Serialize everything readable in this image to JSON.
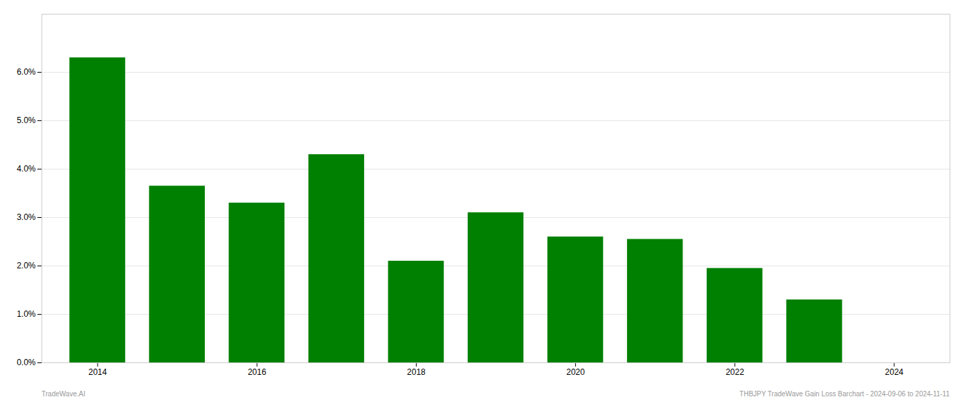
{
  "chart_data": {
    "type": "bar",
    "x": [
      2014,
      2015,
      2016,
      2017,
      2018,
      2019,
      2020,
      2021,
      2022,
      2023
    ],
    "values": [
      0.063,
      0.0365,
      0.033,
      0.043,
      0.021,
      0.031,
      0.026,
      0.0255,
      0.0195,
      0.013
    ],
    "color": "#008000",
    "xlim": [
      2013.3,
      2024.7
    ],
    "xticks": [
      2014,
      2016,
      2018,
      2020,
      2022,
      2024
    ],
    "ylim": [
      0,
      0.072
    ],
    "yticks": [
      {
        "value": 0.0,
        "label": "0.0%"
      },
      {
        "value": 0.01,
        "label": "1.0%"
      },
      {
        "value": 0.02,
        "label": "2.0%"
      },
      {
        "value": 0.03,
        "label": "3.0%"
      },
      {
        "value": 0.04,
        "label": "4.0%"
      },
      {
        "value": 0.05,
        "label": "5.0%"
      },
      {
        "value": 0.06,
        "label": "6.0%"
      }
    ],
    "grid": true,
    "annotations": [
      "TradeWave.AI",
      "THBJPY TradeWave Gain Loss Barchart - 2024-09-06 to 2024-11-11"
    ]
  }
}
